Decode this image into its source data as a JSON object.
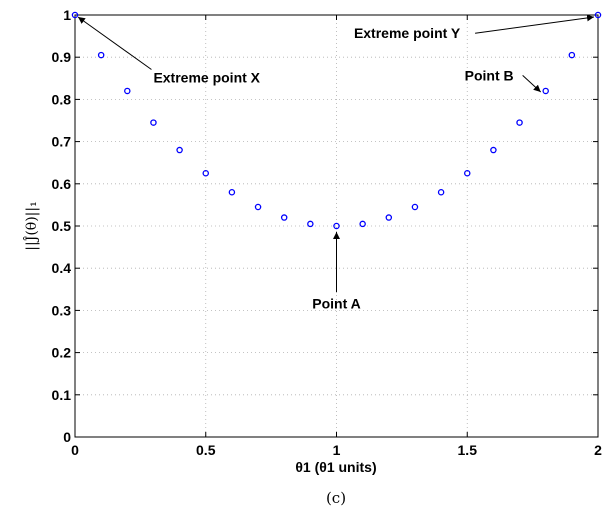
{
  "chart_data": {
    "type": "scatter",
    "xlabel": "θ1 (θ1 units)",
    "ylabel": "||Ĵ(θ)||₁",
    "caption": "(c)",
    "xlim": [
      0,
      2
    ],
    "ylim": [
      0,
      1
    ],
    "grid": true,
    "marker_color": "#0000ff",
    "x_ticks": [
      {
        "value": 0,
        "label": "0"
      },
      {
        "value": 0.5,
        "label": "0.5"
      },
      {
        "value": 1,
        "label": "1"
      },
      {
        "value": 1.5,
        "label": "1.5"
      },
      {
        "value": 2,
        "label": "2"
      }
    ],
    "y_ticks": [
      {
        "value": 0,
        "label": "0"
      },
      {
        "value": 0.1,
        "label": "0.1"
      },
      {
        "value": 0.2,
        "label": "0.2"
      },
      {
        "value": 0.3,
        "label": "0.3"
      },
      {
        "value": 0.4,
        "label": "0.4"
      },
      {
        "value": 0.5,
        "label": "0.5"
      },
      {
        "value": 0.6,
        "label": "0.6"
      },
      {
        "value": 0.7,
        "label": "0.7"
      },
      {
        "value": 0.8,
        "label": "0.8"
      },
      {
        "value": 0.9,
        "label": "0.9"
      },
      {
        "value": 1,
        "label": "1"
      }
    ],
    "series": [
      {
        "x": [
          0,
          0.1,
          0.2,
          0.3,
          0.4,
          0.5,
          0.6,
          0.7,
          0.8,
          0.9,
          1.0,
          1.1,
          1.2,
          1.3,
          1.4,
          1.5,
          1.6,
          1.7,
          1.8,
          1.9,
          2.0
        ],
        "y": [
          1.0,
          0.905,
          0.82,
          0.745,
          0.68,
          0.625,
          0.58,
          0.545,
          0.52,
          0.505,
          0.5,
          0.505,
          0.52,
          0.545,
          0.58,
          0.625,
          0.68,
          0.745,
          0.82,
          0.905,
          1.0
        ]
      }
    ],
    "annotations": [
      {
        "text": "Extreme point X",
        "point": [
          0,
          1.0
        ],
        "text_at": [
          0.3,
          0.84
        ],
        "anchor": "start"
      },
      {
        "text": "Extreme point Y",
        "point": [
          2.0,
          1.0
        ],
        "text_at": [
          1.27,
          0.945
        ],
        "anchor": "middle"
      },
      {
        "text": "Point B",
        "point": [
          1.8,
          0.82
        ],
        "text_at": [
          1.49,
          0.845
        ],
        "anchor": "start"
      },
      {
        "text": "Point A",
        "point": [
          1.0,
          0.5
        ],
        "text_at": [
          1.0,
          0.305
        ],
        "anchor": "middle"
      }
    ]
  }
}
